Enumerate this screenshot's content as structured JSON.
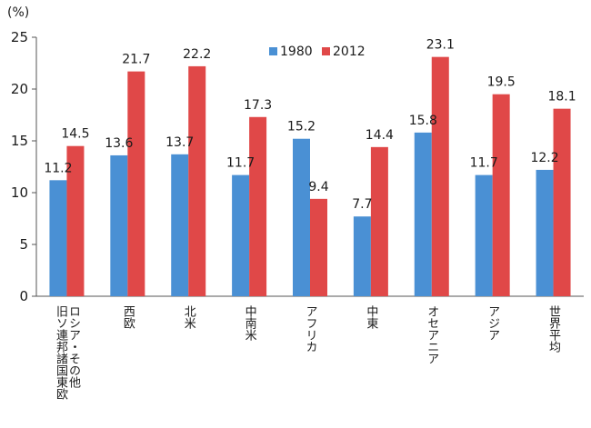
{
  "chart_data": {
    "type": "bar",
    "unit_label": "(%)",
    "ylim": [
      0,
      25
    ],
    "yticks": [
      0,
      5,
      10,
      15,
      20,
      25
    ],
    "categories": [
      [
        "ロシア・その他",
        "旧ソ連邦諸国東欧"
      ],
      [
        "西欧"
      ],
      [
        "北米"
      ],
      [
        "中南米"
      ],
      [
        "アフリカ"
      ],
      [
        "中東"
      ],
      [
        "オセアニア"
      ],
      [
        "アジア"
      ],
      [
        "世界平均"
      ]
    ],
    "series": [
      {
        "name": "1980",
        "color": "#4a90d4",
        "values": [
          11.2,
          13.6,
          13.7,
          11.7,
          15.2,
          7.7,
          15.8,
          11.7,
          12.2
        ]
      },
      {
        "name": "2012",
        "color": "#e04848",
        "values": [
          14.5,
          21.7,
          22.2,
          17.3,
          9.4,
          14.4,
          23.1,
          19.5,
          18.1
        ]
      }
    ],
    "legend_position": "top-center"
  }
}
